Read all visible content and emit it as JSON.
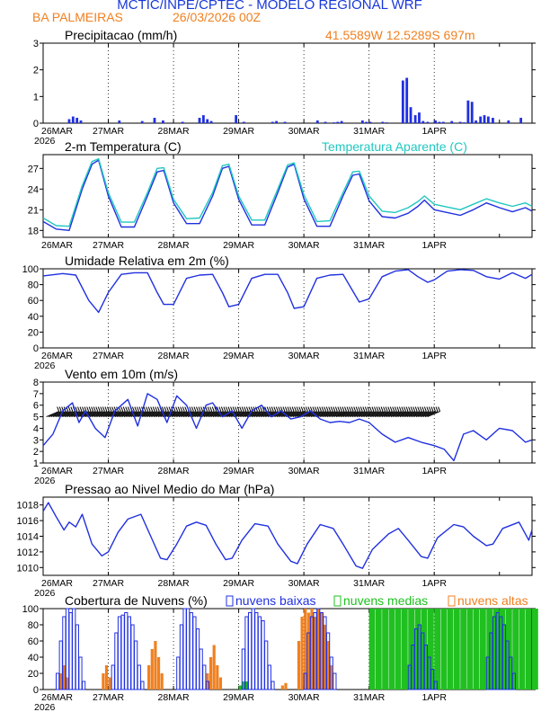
{
  "header": {
    "title": "MCTIC/INPE/CPTEC - MODELO REGIONAL WRF",
    "location": "BA PALMEIRAS",
    "run_date": "26/03/2026 00Z",
    "coords": "41.5589W 12.5289S 697m"
  },
  "colors": {
    "blue": "#2030e0",
    "cyan": "#20c8c0",
    "orange": "#f08020",
    "green": "#20c020",
    "title_blue": "#1838d8",
    "grid": "#000000"
  },
  "axis": {
    "x_labels": [
      "26MAR",
      "27MAR",
      "28MAR",
      "29MAR",
      "30MAR",
      "31MAR",
      "1APR"
    ],
    "year_label": "2026",
    "x_range_days": [
      0,
      7.5
    ]
  },
  "chart_data": [
    {
      "type": "bar",
      "title": "Precipitacao (mm/h)",
      "ylim": [
        0,
        3
      ],
      "yticks": [
        "0",
        "1",
        "2",
        "3"
      ],
      "series": [
        {
          "name": "precip",
          "color": "#2030e0",
          "x": [
            0.38,
            0.44,
            0.5,
            0.56,
            1.15,
            1.5,
            1.69,
            1.82,
            2.12,
            2.38,
            2.44,
            2.5,
            2.56,
            2.94,
            3.06,
            3.5,
            3.56,
            3.69,
            4.19,
            4.31,
            4.44,
            4.5,
            4.56,
            4.88,
            4.94,
            5.0,
            5.19,
            5.25,
            5.5,
            5.56,
            5.62,
            5.69,
            5.75,
            5.81,
            5.88,
            6.0,
            6.06,
            6.12,
            6.25,
            6.38,
            6.44,
            6.5,
            6.56,
            6.62,
            6.69,
            6.75,
            6.81,
            6.88,
            7.12,
            7.31
          ],
          "values": [
            0.15,
            0.25,
            0.2,
            0.1,
            0.1,
            0.08,
            0.2,
            0.1,
            0.05,
            0.2,
            0.3,
            0.15,
            0.08,
            0.3,
            0.05,
            0.05,
            0.08,
            0.05,
            0.1,
            0.05,
            0.03,
            0.05,
            0.08,
            0.1,
            0.05,
            0.05,
            0.05,
            0.03,
            1.6,
            1.7,
            0.6,
            0.3,
            0.4,
            0.08,
            0.05,
            0.1,
            0.05,
            0.05,
            0.08,
            0.05,
            0.03,
            0.85,
            0.8,
            0.1,
            0.25,
            0.3,
            0.25,
            0.2,
            0.1,
            0.2
          ]
        }
      ]
    },
    {
      "type": "line",
      "title": "2-m Temperatura (C)",
      "legend": "Temperatura Aparente (C)",
      "ylim": [
        17,
        29
      ],
      "yticks": [
        "18",
        "21",
        "24",
        "27"
      ],
      "series": [
        {
          "name": "Temperatura (C)",
          "color": "#2030e0",
          "x": [
            0,
            0.2,
            0.4,
            0.6,
            0.75,
            0.85,
            1.0,
            1.2,
            1.4,
            1.6,
            1.75,
            1.85,
            2.0,
            2.2,
            2.4,
            2.6,
            2.75,
            2.85,
            3.0,
            3.2,
            3.4,
            3.6,
            3.75,
            3.85,
            4.0,
            4.2,
            4.4,
            4.6,
            4.75,
            4.85,
            5.0,
            5.2,
            5.4,
            5.6,
            5.75,
            5.85,
            6.0,
            6.2,
            6.4,
            6.6,
            6.8,
            7.0,
            7.2,
            7.4,
            7.5
          ],
          "values": [
            19.3,
            18.2,
            18.0,
            24.0,
            27.6,
            28.2,
            23.0,
            18.5,
            18.5,
            23.0,
            26.5,
            26.7,
            22.0,
            19.0,
            19.0,
            23.0,
            27.0,
            27.3,
            22.5,
            18.8,
            18.8,
            23.5,
            27.2,
            27.6,
            22.6,
            18.6,
            18.6,
            23.0,
            26.0,
            26.2,
            22.3,
            20.0,
            19.8,
            20.5,
            21.5,
            22.4,
            21.0,
            20.6,
            20.2,
            21.0,
            22.0,
            21.3,
            20.7,
            21.3,
            20.8
          ]
        },
        {
          "name": "Temperatura Aparente (C)",
          "color": "#20c8c0",
          "x": [
            0,
            0.2,
            0.4,
            0.6,
            0.75,
            0.85,
            1.0,
            1.2,
            1.4,
            1.6,
            1.75,
            1.85,
            2.0,
            2.2,
            2.4,
            2.6,
            2.75,
            2.85,
            3.0,
            3.2,
            3.4,
            3.6,
            3.75,
            3.85,
            4.0,
            4.2,
            4.4,
            4.6,
            4.75,
            4.85,
            5.0,
            5.2,
            5.4,
            5.6,
            5.75,
            5.85,
            6.0,
            6.2,
            6.4,
            6.6,
            6.8,
            7.0,
            7.2,
            7.4,
            7.5
          ],
          "values": [
            19.8,
            18.7,
            18.6,
            24.5,
            28.0,
            28.4,
            23.5,
            19.2,
            19.2,
            23.5,
            27.0,
            27.1,
            22.5,
            19.7,
            19.8,
            23.5,
            27.4,
            27.6,
            23.0,
            19.5,
            19.5,
            24.0,
            27.5,
            27.8,
            23.2,
            19.3,
            19.4,
            23.5,
            26.5,
            26.6,
            23.0,
            20.8,
            20.6,
            21.3,
            22.2,
            23.0,
            21.8,
            21.4,
            21.0,
            21.8,
            22.6,
            22.0,
            21.5,
            22.0,
            21.5
          ]
        }
      ]
    },
    {
      "type": "line",
      "title": "Umidade Relativa em 2m (%)",
      "ylim": [
        0,
        100
      ],
      "yticks": [
        "0",
        "20",
        "40",
        "60",
        "80",
        "100"
      ],
      "series": [
        {
          "name": "UR",
          "color": "#2030e0",
          "x": [
            0,
            0.3,
            0.5,
            0.7,
            0.85,
            1.0,
            1.2,
            1.4,
            1.6,
            1.75,
            1.85,
            2.0,
            2.2,
            2.4,
            2.6,
            2.75,
            2.85,
            3.0,
            3.2,
            3.4,
            3.6,
            3.75,
            3.85,
            4.0,
            4.2,
            4.4,
            4.6,
            4.75,
            4.85,
            5.0,
            5.2,
            5.4,
            5.6,
            5.75,
            5.9,
            6.0,
            6.2,
            6.4,
            6.6,
            6.8,
            7.0,
            7.2,
            7.4,
            7.5
          ],
          "values": [
            91,
            94,
            92,
            60,
            45,
            70,
            93,
            95,
            95,
            70,
            55,
            55,
            88,
            92,
            93,
            70,
            52,
            55,
            88,
            93,
            93,
            70,
            50,
            52,
            88,
            92,
            93,
            72,
            58,
            62,
            90,
            97,
            99,
            90,
            83,
            86,
            97,
            99,
            98,
            90,
            87,
            95,
            88,
            93
          ]
        }
      ]
    },
    {
      "type": "line",
      "title": "Vento em 10m (m/s)",
      "ylim": [
        1,
        8
      ],
      "yticks": [
        "1",
        "2",
        "3",
        "4",
        "5",
        "6",
        "7",
        "8"
      ],
      "note": "wind barbs along 5 m/s",
      "series": [
        {
          "name": "vento",
          "color": "#2030e0",
          "x": [
            0,
            0.15,
            0.3,
            0.45,
            0.55,
            0.65,
            0.8,
            0.95,
            1.1,
            1.3,
            1.45,
            1.6,
            1.75,
            1.9,
            2.05,
            2.2,
            2.35,
            2.5,
            2.6,
            2.75,
            2.9,
            3.05,
            3.2,
            3.35,
            3.5,
            3.65,
            3.8,
            3.95,
            4.1,
            4.25,
            4.4,
            4.55,
            4.7,
            4.85,
            5.0,
            5.2,
            5.4,
            5.6,
            5.8,
            6.0,
            6.15,
            6.3,
            6.45,
            6.6,
            6.8,
            7.0,
            7.2,
            7.4,
            7.5
          ],
          "values": [
            2.5,
            3.5,
            5.5,
            6.2,
            4.5,
            5.5,
            4.0,
            3.2,
            5.5,
            6.5,
            4.2,
            7.0,
            6.5,
            4.5,
            6.8,
            6.0,
            4.0,
            6.0,
            6.2,
            5.0,
            5.5,
            4.0,
            5.5,
            6.0,
            5.0,
            5.5,
            4.8,
            5.0,
            5.5,
            4.8,
            4.5,
            4.6,
            4.5,
            4.8,
            4.5,
            3.5,
            2.8,
            3.2,
            2.8,
            2.5,
            2.2,
            1.2,
            3.5,
            3.8,
            3.0,
            4.0,
            3.8,
            2.8,
            3.0
          ]
        }
      ]
    },
    {
      "type": "line",
      "title": "Pressao ao Nivel Medio do Mar (hPa)",
      "ylim": [
        1009,
        1019
      ],
      "yticks": [
        "1010",
        "1012",
        "1014",
        "1016",
        "1018"
      ],
      "series": [
        {
          "name": "pressao",
          "color": "#2030e0",
          "x": [
            0,
            0.08,
            0.2,
            0.32,
            0.4,
            0.5,
            0.6,
            0.75,
            0.9,
            1.0,
            1.15,
            1.3,
            1.5,
            1.65,
            1.8,
            1.9,
            2.05,
            2.2,
            2.35,
            2.5,
            2.65,
            2.8,
            2.9,
            3.05,
            3.25,
            3.45,
            3.6,
            3.8,
            3.9,
            4.05,
            4.25,
            4.45,
            4.6,
            4.8,
            4.9,
            5.05,
            5.3,
            5.45,
            5.6,
            5.8,
            5.9,
            6.05,
            6.3,
            6.45,
            6.6,
            6.8,
            6.9,
            7.05,
            7.3,
            7.45,
            7.5
          ],
          "values": [
            1017.2,
            1018.3,
            1016.5,
            1014.8,
            1015.8,
            1015.2,
            1016.8,
            1013.0,
            1011.5,
            1012.0,
            1014.5,
            1016.2,
            1016.8,
            1014.0,
            1011.2,
            1011.0,
            1013.0,
            1015.3,
            1015.8,
            1015.4,
            1013.0,
            1011.0,
            1011.2,
            1013.5,
            1015.6,
            1015.3,
            1013.0,
            1010.8,
            1010.5,
            1013.0,
            1015.5,
            1015.0,
            1013.0,
            1010.2,
            1009.9,
            1012.3,
            1014.3,
            1015.0,
            1013.5,
            1011.4,
            1011.2,
            1013.8,
            1015.5,
            1015.2,
            1014.0,
            1012.8,
            1013.0,
            1015.0,
            1015.8,
            1013.5,
            1014.8
          ]
        }
      ]
    },
    {
      "type": "bar",
      "title": "Cobertura de Nuvens (%)",
      "ylim": [
        0,
        100
      ],
      "yticks": [
        "0",
        "20",
        "40",
        "60",
        "80",
        "100"
      ],
      "legend": [
        "nuvens baixas",
        "nuvens medias",
        "nuvens altas"
      ],
      "series": [
        {
          "name": "nuvens baixas",
          "color": "#2030e0",
          "x": [
            0.2,
            0.25,
            0.3,
            0.35,
            0.4,
            0.45,
            0.5,
            0.55,
            0.6,
            1.05,
            1.1,
            1.15,
            1.2,
            1.25,
            1.3,
            1.35,
            1.4,
            1.45,
            1.5,
            2.05,
            2.1,
            2.15,
            2.2,
            2.25,
            2.3,
            2.35,
            2.4,
            2.45,
            2.5,
            3.05,
            3.1,
            3.15,
            3.2,
            3.25,
            3.3,
            3.35,
            3.4,
            3.45,
            3.5,
            4.0,
            4.05,
            4.1,
            4.15,
            4.2,
            4.25,
            4.3,
            4.35,
            4.4,
            4.45,
            5.6,
            5.65,
            5.7,
            5.75,
            5.8,
            5.85,
            5.9,
            5.95,
            6.0,
            6.8,
            6.85,
            6.9,
            6.95,
            7.0,
            7.05,
            7.1,
            7.15,
            7.2
          ],
          "values": [
            20,
            60,
            90,
            100,
            95,
            100,
            80,
            40,
            10,
            30,
            70,
            90,
            92,
            95,
            90,
            80,
            60,
            30,
            10,
            40,
            80,
            100,
            100,
            95,
            90,
            75,
            50,
            30,
            10,
            50,
            90,
            95,
            100,
            95,
            90,
            85,
            60,
            30,
            10,
            20,
            70,
            90,
            95,
            100,
            95,
            90,
            70,
            40,
            20,
            30,
            55,
            75,
            80,
            70,
            55,
            40,
            25,
            10,
            40,
            70,
            90,
            95,
            90,
            80,
            60,
            40,
            20
          ]
        },
        {
          "name": "nuvens medias",
          "color": "#20c020",
          "x": [
            3.0,
            3.05,
            4.0,
            4.05,
            5.0,
            5.1,
            5.2,
            5.3,
            5.4,
            5.5,
            5.6,
            5.7,
            5.8,
            5.9,
            6.0,
            6.1,
            6.2,
            6.3,
            6.4,
            6.5,
            6.6,
            6.7,
            6.8,
            6.9,
            7.0,
            7.1,
            7.2,
            7.3,
            7.4,
            7.5
          ],
          "values": [
            5,
            10,
            5,
            10,
            100,
            100,
            100,
            100,
            100,
            100,
            100,
            100,
            100,
            100,
            100,
            100,
            100,
            100,
            100,
            100,
            100,
            100,
            100,
            100,
            100,
            100,
            100,
            100,
            100,
            100
          ]
        },
        {
          "name": "nuvens altas",
          "color": "#f08020",
          "x": [
            0.25,
            0.3,
            0.35,
            0.9,
            0.95,
            1.0,
            1.6,
            1.65,
            1.7,
            1.75,
            1.8,
            2.5,
            2.55,
            2.6,
            2.65,
            2.7,
            3.65,
            3.7,
            3.9,
            3.95,
            4.0,
            4.05,
            4.1,
            4.15,
            4.2,
            4.25,
            4.3,
            4.35,
            4.4
          ],
          "values": [
            20,
            30,
            15,
            20,
            30,
            15,
            30,
            50,
            60,
            40,
            20,
            20,
            40,
            55,
            30,
            15,
            5,
            8,
            60,
            90,
            100,
            95,
            100,
            90,
            100,
            95,
            80,
            60,
            30
          ]
        }
      ]
    }
  ]
}
